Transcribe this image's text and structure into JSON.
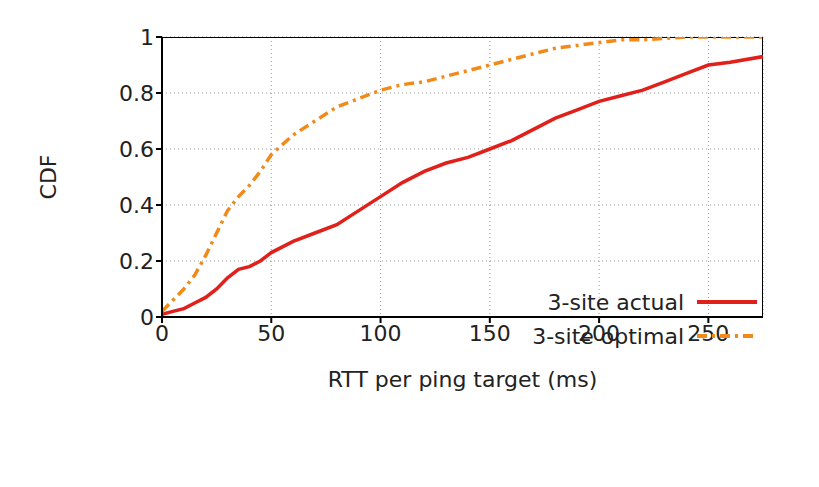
{
  "chart_data": {
    "type": "line",
    "x_label": "RTT per ping target (ms)",
    "y_label": "CDF",
    "x": [
      0,
      5,
      10,
      15,
      20,
      25,
      30,
      35,
      40,
      45,
      50,
      60,
      70,
      80,
      90,
      100,
      110,
      120,
      130,
      140,
      150,
      160,
      170,
      180,
      190,
      200,
      210,
      220,
      230,
      240,
      250,
      260,
      275
    ],
    "series": [
      {
        "name": "3-site actual",
        "color": "#e0201b",
        "line_style": "solid",
        "values": [
          0.01,
          0.02,
          0.03,
          0.05,
          0.07,
          0.1,
          0.14,
          0.17,
          0.18,
          0.2,
          0.23,
          0.27,
          0.3,
          0.33,
          0.38,
          0.43,
          0.48,
          0.52,
          0.55,
          0.57,
          0.6,
          0.63,
          0.67,
          0.71,
          0.74,
          0.77,
          0.79,
          0.81,
          0.84,
          0.87,
          0.9,
          0.91,
          0.93
        ]
      },
      {
        "name": "3-site optimal",
        "color": "#f28a1a",
        "line_style": "dashdot",
        "values": [
          0.02,
          0.06,
          0.1,
          0.15,
          0.22,
          0.3,
          0.38,
          0.43,
          0.47,
          0.52,
          0.58,
          0.65,
          0.7,
          0.75,
          0.78,
          0.81,
          0.83,
          0.84,
          0.86,
          0.88,
          0.9,
          0.92,
          0.94,
          0.96,
          0.97,
          0.98,
          0.99,
          0.99,
          0.995,
          1,
          1,
          1,
          1
        ]
      }
    ],
    "xlim": [
      0,
      275
    ],
    "xticks": [
      0,
      50,
      100,
      150,
      200,
      250
    ],
    "ylim": [
      0,
      1
    ],
    "yticks": [
      0,
      0.2,
      0.4,
      0.6,
      0.8,
      1
    ],
    "grid": true,
    "legend": "lower right"
  }
}
